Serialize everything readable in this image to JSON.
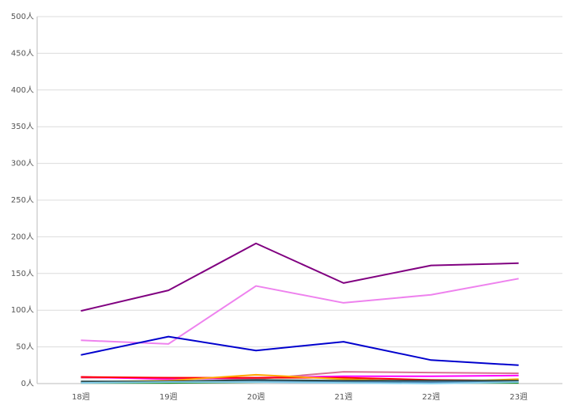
{
  "chart_data": {
    "type": "line",
    "categories": [
      "18週",
      "19週",
      "20週",
      "21週",
      "22週",
      "23週"
    ],
    "series": [
      {
        "color": "#800080",
        "values": [
          99,
          127,
          191,
          137,
          161,
          164
        ]
      },
      {
        "color": "#ee82ee",
        "values": [
          59,
          54,
          133,
          110,
          121,
          143
        ]
      },
      {
        "color": "#0000cd",
        "values": [
          39,
          64,
          45,
          57,
          32,
          25
        ]
      },
      {
        "color": "#d87093",
        "values": [
          8,
          8,
          6,
          16,
          15,
          14
        ]
      },
      {
        "color": "#ff00ff",
        "values": [
          9,
          6,
          8,
          10,
          10,
          11
        ]
      },
      {
        "color": "#ff0000",
        "values": [
          9,
          8,
          8,
          8,
          5,
          4
        ]
      },
      {
        "color": "#ffa500",
        "values": [
          2,
          4,
          12,
          6,
          2,
          6
        ]
      },
      {
        "color": "#008000",
        "values": [
          1,
          1,
          2,
          3,
          1,
          1
        ]
      },
      {
        "color": "#4682b4",
        "values": [
          2,
          3,
          4,
          3,
          2,
          3
        ]
      },
      {
        "color": "#2f4f4f",
        "values": [
          3,
          3,
          5,
          4,
          4,
          4
        ]
      },
      {
        "color": "#87ceeb",
        "values": [
          1,
          2,
          2,
          1,
          0,
          2
        ]
      }
    ],
    "ylim": [
      0,
      500
    ],
    "yticks": [
      {
        "value": 0,
        "label": "0人"
      },
      {
        "value": 50,
        "label": "50人"
      },
      {
        "value": 100,
        "label": "100人"
      },
      {
        "value": 150,
        "label": "150人"
      },
      {
        "value": 200,
        "label": "200人"
      },
      {
        "value": 250,
        "label": "250人"
      },
      {
        "value": 300,
        "label": "300人"
      },
      {
        "value": 350,
        "label": "350人"
      },
      {
        "value": 400,
        "label": "400人"
      },
      {
        "value": 450,
        "label": "450人"
      },
      {
        "value": 500,
        "label": "500人"
      }
    ],
    "grid": true
  }
}
